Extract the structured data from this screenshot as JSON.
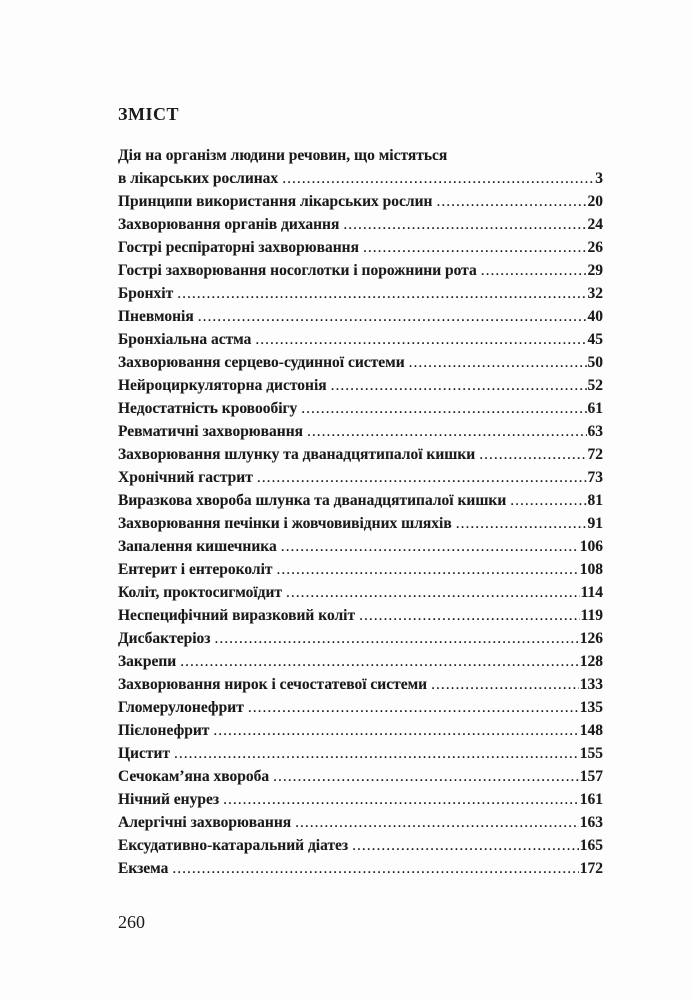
{
  "title": "ЗМІСТ",
  "first_entry": {
    "line1": "Дія на організм людини речовин, що містяться",
    "line2": "в лікарських рослинах",
    "page": "3"
  },
  "entries": [
    {
      "label": "Принципи використання лікарських рослин",
      "page": "20"
    },
    {
      "label": "Захворювання органів дихання",
      "page": "24"
    },
    {
      "label": "Гострі респіраторні захворювання",
      "page": "26"
    },
    {
      "label": "Гострі захворювання носоглотки і порожнини рота",
      "page": "29"
    },
    {
      "label": "Бронхіт",
      "page": "32"
    },
    {
      "label": "Пневмонія",
      "page": "40"
    },
    {
      "label": "Бронхіальна астма",
      "page": "45"
    },
    {
      "label": "Захворювання серцево-судинної системи",
      "page": "50"
    },
    {
      "label": "Нейроциркуляторна дистонія",
      "page": "52"
    },
    {
      "label": "Недостатність кровообігу",
      "page": "61"
    },
    {
      "label": "Ревматичні захворювання",
      "page": "63"
    },
    {
      "label": "Захворювання шлунку та дванадцятипалої кишки",
      "page": "72"
    },
    {
      "label": "Хронічний гастрит",
      "page": "73"
    },
    {
      "label": "Виразкова хвороба шлунка та дванадцятипалої кишки",
      "page": "81"
    },
    {
      "label": "Захворювання печінки і жовчовивідних шляхів",
      "page": "91"
    },
    {
      "label": "Запалення кишечника",
      "page": "106"
    },
    {
      "label": "Ентерит і ентероколіт",
      "page": "108"
    },
    {
      "label": "Коліт, проктосигмоїдит",
      "page": "114"
    },
    {
      "label": "Неспецифічний виразковий коліт",
      "page": "119"
    },
    {
      "label": "Дисбактеріоз",
      "page": "126"
    },
    {
      "label": "Закрепи",
      "page": "128"
    },
    {
      "label": "Захворювання нирок і сечостатевої системи",
      "page": "133"
    },
    {
      "label": "Гломерулонефрит",
      "page": "135"
    },
    {
      "label": "Пієлонефрит",
      "page": "148"
    },
    {
      "label": "Цистит",
      "page": "155"
    },
    {
      "label": "Сечокам’яна хвороба",
      "page": "157"
    },
    {
      "label": "Нічний енурез",
      "page": "161"
    },
    {
      "label": "Алергічні захворювання",
      "page": "163"
    },
    {
      "label": "Ексудативно-катаральний діатез",
      "page": "165"
    },
    {
      "label": "Екзема",
      "page": "172"
    }
  ],
  "page_number": "260"
}
